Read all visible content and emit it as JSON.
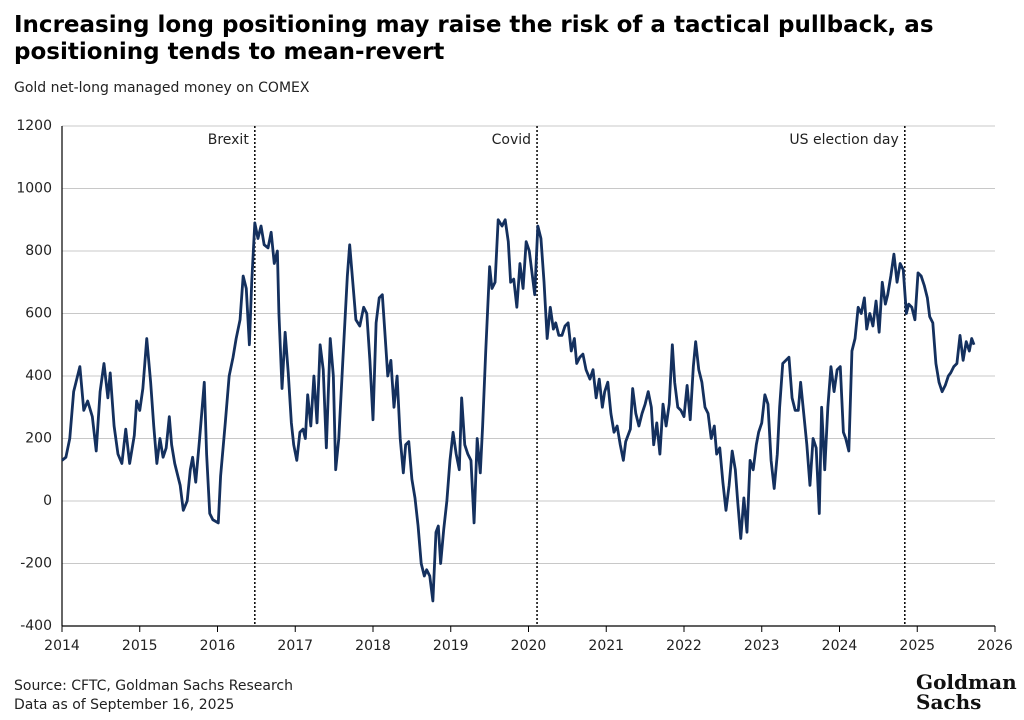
{
  "chart_data": {
    "type": "line",
    "title": "Increasing long positioning may raise the risk of a tactical pullback, as positioning tends to mean-revert",
    "subtitle": "Gold net-long managed money on COMEX",
    "source": "Source: CFTC, Goldman Sachs Research",
    "note": "Data as of September 16, 2025",
    "logo": "Goldman Sachs",
    "xlim": [
      2014,
      2026
    ],
    "xticks": [
      2014,
      2015,
      2016,
      2017,
      2018,
      2019,
      2020,
      2021,
      2022,
      2023,
      2024,
      2025,
      2026
    ],
    "ylim": [
      -400,
      1200
    ],
    "yticks": [
      -400,
      -200,
      0,
      200,
      400,
      600,
      800,
      1000,
      1200
    ],
    "grid": true,
    "annotations": [
      {
        "x": 2016.48,
        "label": "Brexit"
      },
      {
        "x": 2020.11,
        "label": "Covid"
      },
      {
        "x": 2024.84,
        "label": "US election day"
      }
    ],
    "series": [
      {
        "color": "#14305e",
        "x": [
          2014.0,
          2014.05,
          2014.1,
          2014.15,
          2014.23,
          2014.28,
          2014.33,
          2014.39,
          2014.44,
          2014.49,
          2014.54,
          2014.59,
          2014.62,
          2014.67,
          2014.72,
          2014.77,
          2014.82,
          2014.87,
          2014.93,
          2014.96,
          2015.0,
          2015.04,
          2015.09,
          2015.14,
          2015.18,
          2015.22,
          2015.26,
          2015.3,
          2015.34,
          2015.38,
          2015.41,
          2015.45,
          2015.52,
          2015.56,
          2015.61,
          2015.65,
          2015.68,
          2015.72,
          2015.77,
          2015.83,
          2015.86,
          2015.9,
          2015.94,
          2016.01,
          2016.04,
          2016.1,
          2016.15,
          2016.2,
          2016.24,
          2016.29,
          2016.33,
          2016.37,
          2016.41,
          2016.44,
          2016.48,
          2016.52,
          2016.56,
          2016.6,
          2016.65,
          2016.69,
          2016.73,
          2016.77,
          2016.79,
          2016.83,
          2016.87,
          2016.91,
          2016.95,
          2016.98,
          2017.02,
          2017.06,
          2017.1,
          2017.13,
          2017.16,
          2017.2,
          2017.24,
          2017.28,
          2017.32,
          2017.36,
          2017.4,
          2017.45,
          2017.49,
          2017.52,
          2017.56,
          2017.61,
          2017.67,
          2017.7,
          2017.74,
          2017.78,
          2017.83,
          2017.88,
          2017.92,
          2017.96,
          2018.0,
          2018.04,
          2018.08,
          2018.12,
          2018.15,
          2018.19,
          2018.23,
          2018.27,
          2018.31,
          2018.35,
          2018.39,
          2018.42,
          2018.46,
          2018.5,
          2018.54,
          2018.58,
          2018.62,
          2018.66,
          2018.69,
          2018.73,
          2018.77,
          2018.81,
          2018.84,
          2018.87,
          2018.91,
          2018.95,
          2018.99,
          2019.03,
          2019.07,
          2019.11,
          2019.14,
          2019.18,
          2019.22,
          2019.26,
          2019.3,
          2019.34,
          2019.38,
          2019.41,
          2019.45,
          2019.5,
          2019.53,
          2019.57,
          2019.61,
          2019.66,
          2019.7,
          2019.74,
          2019.77,
          2019.81,
          2019.85,
          2019.89,
          2019.93,
          2019.97,
          2020.01,
          2020.05,
          2020.08,
          2020.12,
          2020.16,
          2020.2,
          2020.24,
          2020.28,
          2020.32,
          2020.35,
          2020.39,
          2020.43,
          2020.47,
          2020.51,
          2020.55,
          2020.59,
          2020.62,
          2020.66,
          2020.7,
          2020.74,
          2020.79,
          2020.83,
          2020.87,
          2020.91,
          2020.95,
          2020.98,
          2021.02,
          2021.06,
          2021.1,
          2021.14,
          2021.18,
          2021.22,
          2021.25,
          2021.31,
          2021.34,
          2021.38,
          2021.42,
          2021.46,
          2021.5,
          2021.54,
          2021.58,
          2021.61,
          2021.65,
          2021.69,
          2021.73,
          2021.77,
          2021.81,
          2021.85,
          2021.88,
          2021.92,
          2021.96,
          2022.0,
          2022.04,
          2022.08,
          2022.12,
          2022.15,
          2022.19,
          2022.23,
          2022.27,
          2022.31,
          2022.35,
          2022.39,
          2022.42,
          2022.46,
          2022.5,
          2022.54,
          2022.58,
          2022.62,
          2022.66,
          2022.69,
          2022.73,
          2022.77,
          2022.81,
          2022.85,
          2022.89,
          2022.93,
          2022.96,
          2023.0,
          2023.04,
          2023.08,
          2023.12,
          2023.16,
          2023.2,
          2023.23,
          2023.27,
          2023.31,
          2023.35,
          2023.39,
          2023.43,
          2023.47,
          2023.5,
          2023.54,
          2023.58,
          2023.62,
          2023.66,
          2023.7,
          2023.74,
          2023.77,
          2023.81,
          2023.85,
          2023.89,
          2023.93,
          2023.97,
          2024.01,
          2024.05,
          2024.08,
          2024.12,
          2024.16,
          2024.2,
          2024.24,
          2024.28,
          2024.32,
          2024.35,
          2024.39,
          2024.43,
          2024.47,
          2024.51,
          2024.55,
          2024.59,
          2024.62,
          2024.66,
          2024.7,
          2024.74,
          2024.78,
          2024.82,
          2024.86,
          2024.89,
          2024.93,
          2024.97,
          2025.01,
          2025.05,
          2025.09,
          2025.13,
          2025.16,
          2025.2,
          2025.24,
          2025.28,
          2025.32,
          2025.36,
          2025.4,
          2025.43,
          2025.47,
          2025.51,
          2025.55,
          2025.59,
          2025.63,
          2025.67,
          2025.7,
          2025.73
        ],
        "values": [
          130,
          140,
          200,
          350,
          430,
          290,
          320,
          270,
          160,
          350,
          440,
          330,
          410,
          240,
          150,
          120,
          230,
          120,
          210,
          320,
          290,
          360,
          520,
          380,
          240,
          120,
          200,
          140,
          170,
          270,
          180,
          120,
          50,
          -30,
          0,
          100,
          140,
          60,
          200,
          380,
          150,
          -40,
          -60,
          -70,
          80,
          250,
          400,
          460,
          520,
          580,
          720,
          680,
          500,
          700,
          890,
          840,
          880,
          820,
          810,
          860,
          760,
          800,
          600,
          360,
          540,
          410,
          250,
          180,
          130,
          220,
          230,
          200,
          340,
          240,
          400,
          250,
          500,
          420,
          170,
          520,
          400,
          100,
          200,
          440,
          720,
          820,
          700,
          580,
          560,
          620,
          600,
          450,
          260,
          570,
          650,
          660,
          550,
          400,
          450,
          300,
          400,
          200,
          90,
          180,
          190,
          70,
          10,
          -80,
          -200,
          -240,
          -220,
          -240,
          -320,
          -100,
          -80,
          -200,
          -90,
          0,
          130,
          220,
          150,
          100,
          330,
          180,
          150,
          130,
          -70,
          200,
          90,
          240,
          480,
          750,
          680,
          700,
          900,
          880,
          900,
          830,
          700,
          710,
          620,
          760,
          680,
          830,
          800,
          720,
          660,
          880,
          840,
          700,
          520,
          620,
          550,
          570,
          530,
          530,
          560,
          570,
          480,
          520,
          440,
          460,
          470,
          420,
          390,
          420,
          330,
          390,
          300,
          350,
          380,
          280,
          220,
          240,
          180,
          130,
          190,
          230,
          360,
          280,
          240,
          280,
          310,
          350,
          300,
          180,
          250,
          150,
          310,
          240,
          310,
          500,
          380,
          300,
          290,
          270,
          370,
          260,
          430,
          510,
          420,
          380,
          300,
          280,
          200,
          240,
          150,
          170,
          60,
          -30,
          50,
          160,
          100,
          0,
          -120,
          10,
          -100,
          130,
          100,
          180,
          220,
          250,
          340,
          310,
          130,
          40,
          150,
          300,
          440,
          450,
          460,
          330,
          290,
          290,
          380,
          280,
          180,
          50,
          200,
          170,
          -40,
          300,
          100,
          300,
          430,
          350,
          420,
          430,
          220,
          200,
          160,
          480,
          520,
          620,
          600,
          650,
          550,
          600,
          560,
          640,
          540,
          700,
          630,
          660,
          720,
          790,
          700,
          760,
          740,
          600,
          630,
          620,
          580,
          730,
          720,
          690,
          650,
          590,
          570,
          440,
          380,
          350,
          370,
          400,
          410,
          430,
          440,
          530,
          450,
          510,
          480,
          520,
          500
        ]
      }
    ]
  }
}
